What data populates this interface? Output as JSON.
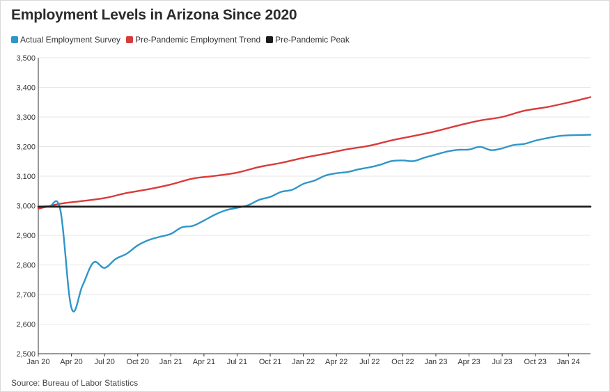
{
  "chart_data": {
    "type": "line",
    "title": "Employment Levels in Arizona Since 2020",
    "xlabel": "",
    "ylabel": "",
    "ylim": [
      2500,
      3500
    ],
    "y_ticks": [
      2500,
      2600,
      2700,
      2800,
      2900,
      3000,
      3100,
      3200,
      3300,
      3400,
      3500
    ],
    "y_tick_labels": [
      "2,500",
      "2,600",
      "2,700",
      "2,800",
      "2,900",
      "3,000",
      "3,100",
      "3,200",
      "3,300",
      "3,400",
      "3,500"
    ],
    "x_start": "2020-01",
    "x_end": "2024-03",
    "x_tick_labels": [
      "Jan 20",
      "Apr 20",
      "Jul 20",
      "Oct 20",
      "Jan 21",
      "Apr 21",
      "Jul 21",
      "Oct 21",
      "Jan 22",
      "Apr 22",
      "Jul 22",
      "Oct 22",
      "Jan 23",
      "Apr 23",
      "Jul 23",
      "Oct 23",
      "Jan 24"
    ],
    "grid": "horizontal",
    "legend_position": "top-left",
    "series": [
      {
        "name": "Actual Employment Survey",
        "color": "#2e96c8",
        "x": [
          "2020-01",
          "2020-02",
          "2020-03",
          "2020-04",
          "2020-05",
          "2020-06",
          "2020-07",
          "2020-08",
          "2020-09",
          "2020-10",
          "2020-11",
          "2020-12",
          "2021-01",
          "2021-02",
          "2021-03",
          "2021-04",
          "2021-05",
          "2021-06",
          "2021-07",
          "2021-08",
          "2021-09",
          "2021-10",
          "2021-11",
          "2021-12",
          "2022-01",
          "2022-02",
          "2022-03",
          "2022-04",
          "2022-05",
          "2022-06",
          "2022-07",
          "2022-08",
          "2022-09",
          "2022-10",
          "2022-11",
          "2022-12",
          "2023-01",
          "2023-02",
          "2023-03",
          "2023-04",
          "2023-05",
          "2023-06",
          "2023-07",
          "2023-08",
          "2023-09",
          "2023-10",
          "2023-11",
          "2023-12",
          "2024-01",
          "2024-02",
          "2024-03"
        ],
        "values": [
          2995,
          2998,
          2985,
          2655,
          2730,
          2808,
          2790,
          2820,
          2838,
          2866,
          2884,
          2895,
          2905,
          2927,
          2932,
          2950,
          2970,
          2985,
          2993,
          3002,
          3020,
          3030,
          3047,
          3054,
          3074,
          3085,
          3102,
          3110,
          3114,
          3123,
          3130,
          3139,
          3151,
          3153,
          3151,
          3163,
          3173,
          3183,
          3189,
          3190,
          3199,
          3188,
          3194,
          3205,
          3209,
          3220,
          3228,
          3235,
          3238,
          3239,
          3240
        ]
      },
      {
        "name": "Pre-Pandemic Employment Trend",
        "color": "#d93b3b",
        "x": [
          "2020-01",
          "2020-03",
          "2020-05",
          "2020-07",
          "2020-09",
          "2020-11",
          "2021-01",
          "2021-03",
          "2021-05",
          "2021-07",
          "2021-09",
          "2021-11",
          "2022-01",
          "2022-03",
          "2022-05",
          "2022-07",
          "2022-09",
          "2022-11",
          "2023-01",
          "2023-03",
          "2023-05",
          "2023-07",
          "2023-09",
          "2023-11",
          "2024-01",
          "2024-03"
        ],
        "values": [
          2990,
          3007,
          3016,
          3026,
          3043,
          3056,
          3072,
          3092,
          3101,
          3112,
          3131,
          3145,
          3162,
          3176,
          3191,
          3203,
          3221,
          3236,
          3252,
          3271,
          3288,
          3300,
          3321,
          3333,
          3349,
          3367
        ]
      },
      {
        "name": "Pre-Pandemic Peak",
        "color": "#1a1a1a",
        "x": [
          "2020-01",
          "2024-03"
        ],
        "values": [
          2997,
          2997
        ]
      }
    ]
  },
  "source": "Source: Bureau of Labor Statistics"
}
